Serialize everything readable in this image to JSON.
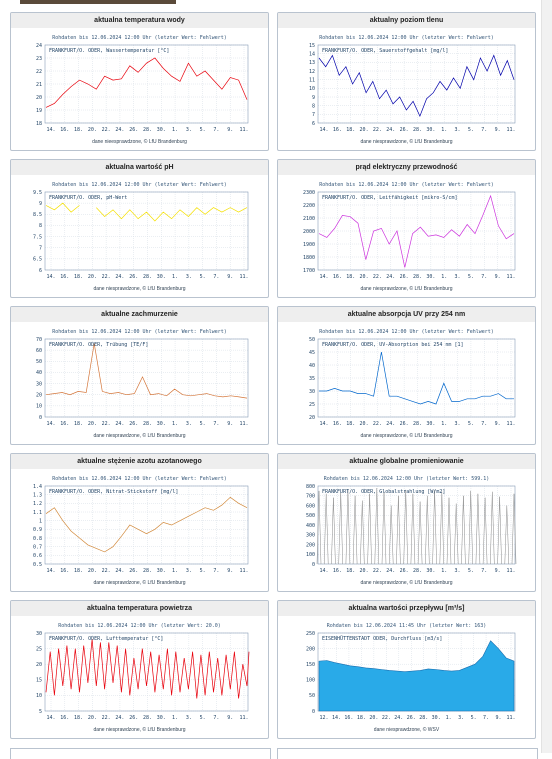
{
  "cards": [
    {
      "title": "aktualna temperatura wody",
      "subtitle": "Rohdaten bis 12.06.2024 12:00 Uhr (letzter Wert: Fehlwert)",
      "legend": "FRANKFURT/O. ODER, Wassertemperatur [°C]",
      "footer": "dane nieesprawdzone, © LfU Brandenburg",
      "color": "#e8000b"
    },
    {
      "title": "aktualny poziom tlenu",
      "subtitle": "Rohdaten bis 12.06.2024 12:00 Uhr (letzter Wert: Fehlwert)",
      "legend": "FRANKFURT/O. ODER, Sauerstoffgehalt [mg/l]",
      "footer": "dane niesprawdzone, © LfU Brandenburg",
      "color": "#0000aa"
    },
    {
      "title": "aktualna wartość pH",
      "subtitle": "Rohdaten bis 12.06.2024 12:00 Uhr (letzter Wert: Fehlwert)",
      "legend": "FRANKFURT/O. ODER, pH-Wert",
      "footer": "dane niesprawdzone, © LfU Brandenburg",
      "color": "#f5e000"
    },
    {
      "title": "prąd elektryczny przewodność",
      "subtitle": "Rohdaten bis 12.06.2024 12:00 Uhr (letzter Wert: Fehlwert)",
      "legend": "FRANKFURT/O. ODER, Leitfähigkeit [mikro-S/cm]",
      "footer": "dane niesprawdzone, © LfU Brandenburg",
      "color": "#cc33dd"
    },
    {
      "title": "aktualne zachmurzenie",
      "subtitle": "Rohdaten bis 12.06.2024 12:00 Uhr (letzter Wert: Fehlwert)",
      "legend": "FRANKFURT/O. ODER, Trübung [TE/F]",
      "footer": "dane niesprawdzone, © LfU Brandenburg",
      "color": "#d4763a"
    },
    {
      "title": "aktualne absorpcja UV przy 254 nm",
      "subtitle": "Rohdaten bis 12.06.2024 12:00 Uhr (letzter Wert: Fehlwert)",
      "legend": "FRANKFURT/O. ODER, UV-Absorption bei 254 nm [1]",
      "footer": "dane niesprawdzone, © LfU Brandenburg",
      "color": "#0066cc"
    },
    {
      "title": "aktualne stężenie azotu azotanowego",
      "subtitle": "Rohdaten bis 12.06.2024 12:00 Uhr (letzter Wert: Fehlwert)",
      "legend": "FRANKFURT/O. ODER, Nitrat-Stickstoff [mg/l]",
      "footer": "dane niesprawdzone, © LfU Brandenburg",
      "color": "#d28a3c"
    },
    {
      "title": "aktualne globalne promieniowanie",
      "subtitle": "Rohdaten bis 12.06.2024 12:00 Uhr (letzter Wert: 599.1)",
      "legend": "FRANKFURT/O. ODER, Globalstrahlung [W/m2]",
      "footer": "dane niesprawdzone, © LfU Brandenburg",
      "color": "#888888"
    },
    {
      "title": "aktualna temperatura powietrza",
      "subtitle": "Rohdaten bis 12.06.2024 12:00 Uhr (letzter Wert: 20.0)",
      "legend": "FRANKFURT/O. ODER, Lufttemperatur [°C]",
      "footer": "dane niesprawdzone, © LfU Brandenburg",
      "color": "#e8000b"
    },
    {
      "title": "aktualna wartości przepływu [m³/s]",
      "subtitle": "Rohdaten bis 12.06.2024 11:45 Uhr (letzter Wert: 163)",
      "legend": "EISENHÜTTENSTADT ODER, Durchfluss [m3/s]",
      "footer": "dane niesprawdzone, © WSV",
      "color": "#29aae8"
    }
  ],
  "chart_data": [
    {
      "type": "line",
      "x_ticks": [
        "14.",
        "16.",
        "18.",
        "20.",
        "22.",
        "24.",
        "26.",
        "28.",
        "30.",
        "1.",
        "3.",
        "5.",
        "7.",
        "9.",
        "11."
      ],
      "ylim": [
        18,
        24
      ],
      "y_ticks": [
        18,
        19,
        20,
        21,
        22,
        23,
        24
      ],
      "grid": true,
      "series": [
        {
          "values": [
            19.2,
            19.5,
            20.2,
            20.8,
            21.3,
            21.0,
            20.6,
            21.6,
            21.3,
            21.4,
            22.4,
            21.9,
            22.6,
            23.0,
            22.2,
            21.6,
            21.2,
            22.6,
            21.6,
            22.0,
            21.3,
            20.6,
            21.5,
            21.3,
            19.8
          ]
        }
      ]
    },
    {
      "type": "line",
      "x_ticks": [
        "14.",
        "16.",
        "18.",
        "20.",
        "22.",
        "24.",
        "26.",
        "28.",
        "30.",
        "1.",
        "3.",
        "5.",
        "7.",
        "9.",
        "11."
      ],
      "ylim": [
        6,
        15
      ],
      "y_ticks": [
        6,
        7,
        8,
        9,
        10,
        11,
        12,
        13,
        14,
        15
      ],
      "grid": true,
      "series": [
        {
          "values": [
            13.5,
            12.5,
            13.8,
            11.5,
            12.5,
            10.5,
            11.8,
            9.5,
            10.8,
            8.8,
            9.8,
            8.2,
            9.0,
            7.5,
            8.5,
            6.8,
            8.8,
            9.5,
            10.8,
            9.8,
            11.2,
            10.0,
            12.5,
            11.0,
            13.5,
            12.0,
            13.8,
            11.5,
            13.2,
            11.0
          ]
        }
      ]
    },
    {
      "type": "line",
      "x_ticks": [
        "14.",
        "16.",
        "18.",
        "20.",
        "22.",
        "24.",
        "26.",
        "28.",
        "30.",
        "1.",
        "3.",
        "5.",
        "7.",
        "9.",
        "11."
      ],
      "ylim": [
        6,
        9.5
      ],
      "y_ticks": [
        6,
        6.5,
        7,
        7.5,
        8,
        8.5,
        9,
        9.5
      ],
      "grid": true,
      "series": [
        {
          "values": [
            8.9,
            8.7,
            9.0,
            8.6,
            8.9,
            null,
            8.8,
            8.4,
            8.7,
            8.3,
            8.7,
            8.3,
            8.6,
            8.2,
            8.6,
            8.3,
            8.7,
            8.4,
            8.8,
            8.5,
            8.8,
            8.6,
            8.8,
            8.6,
            8.8
          ]
        }
      ]
    },
    {
      "type": "line",
      "x_ticks": [
        "14.",
        "16.",
        "18.",
        "20.",
        "22.",
        "24.",
        "26.",
        "28.",
        "30.",
        "1.",
        "3.",
        "5.",
        "7.",
        "9.",
        "11."
      ],
      "ylim": [
        1700,
        2300
      ],
      "y_ticks": [
        1700,
        1800,
        1900,
        2000,
        2100,
        2200,
        2300
      ],
      "grid": true,
      "series": [
        {
          "values": [
            1980,
            1950,
            2020,
            2120,
            2110,
            2060,
            1780,
            2000,
            2020,
            1900,
            2000,
            1720,
            1980,
            2030,
            1960,
            1970,
            1950,
            2010,
            1960,
            2050,
            1980,
            2120,
            2270,
            2040,
            1940,
            1980
          ]
        }
      ]
    },
    {
      "type": "line",
      "x_ticks": [
        "14.",
        "16.",
        "18.",
        "20.",
        "22.",
        "24.",
        "26.",
        "28.",
        "30.",
        "1.",
        "3.",
        "5.",
        "7.",
        "9.",
        "11."
      ],
      "ylim": [
        0,
        70
      ],
      "y_ticks": [
        0,
        10,
        20,
        30,
        40,
        50,
        60,
        70
      ],
      "grid": true,
      "series": [
        {
          "values": [
            20,
            21,
            22,
            20,
            23,
            22,
            66,
            23,
            21,
            22,
            20,
            21,
            36,
            20,
            21,
            19,
            25,
            20,
            19,
            20,
            21,
            19,
            18,
            19,
            18,
            17
          ]
        }
      ]
    },
    {
      "type": "line",
      "x_ticks": [
        "14.",
        "16.",
        "18.",
        "20.",
        "22.",
        "24.",
        "26.",
        "28.",
        "30.",
        "1.",
        "3.",
        "5.",
        "7.",
        "9.",
        "11."
      ],
      "ylim": [
        20,
        50
      ],
      "y_ticks": [
        20,
        25,
        30,
        35,
        40,
        45,
        50
      ],
      "grid": true,
      "series": [
        {
          "values": [
            30,
            30,
            31,
            30,
            30,
            29,
            29,
            28,
            45,
            28,
            28,
            27,
            26,
            25,
            26,
            25,
            33,
            26,
            26,
            27,
            27,
            28,
            28,
            29,
            27,
            27
          ]
        }
      ]
    },
    {
      "type": "line",
      "x_ticks": [
        "14.",
        "16.",
        "18.",
        "20.",
        "22.",
        "24.",
        "26.",
        "28.",
        "30.",
        "1.",
        "3.",
        "5.",
        "7.",
        "9.",
        "11."
      ],
      "ylim": [
        0.5,
        1.4
      ],
      "y_ticks": [
        0.5,
        0.6,
        0.7,
        0.8,
        0.9,
        1.0,
        1.1,
        1.2,
        1.3,
        1.4
      ],
      "grid": true,
      "series": [
        {
          "values": [
            1.08,
            1.15,
            1.0,
            0.88,
            0.8,
            0.72,
            0.68,
            0.64,
            0.7,
            0.82,
            0.95,
            0.9,
            0.85,
            0.9,
            0.98,
            0.95,
            1.0,
            1.05,
            1.1,
            1.15,
            1.12,
            1.18,
            1.27,
            1.2,
            1.15
          ]
        }
      ]
    },
    {
      "type": "line",
      "x_ticks": [
        "14.",
        "16.",
        "18.",
        "20.",
        "22.",
        "24.",
        "26.",
        "28.",
        "30.",
        "1.",
        "3.",
        "5.",
        "7.",
        "9.",
        "11."
      ],
      "ylim": [
        0,
        800
      ],
      "y_ticks": [
        0,
        100,
        200,
        300,
        400,
        500,
        600,
        700,
        800
      ],
      "grid": true,
      "series": [
        {
          "values": [
            750,
            720,
            680,
            740,
            760,
            700,
            650,
            720,
            780,
            740,
            600,
            700,
            760,
            720,
            640,
            700,
            760,
            740,
            680,
            620,
            700,
            750,
            720,
            680,
            740,
            690,
            600,
            720
          ]
        }
      ]
    },
    {
      "type": "line",
      "x_ticks": [
        "14.",
        "16.",
        "18.",
        "20.",
        "22.",
        "24.",
        "26.",
        "28.",
        "30.",
        "1.",
        "3.",
        "5.",
        "7.",
        "9.",
        "11."
      ],
      "ylim": [
        5,
        30
      ],
      "y_ticks": [
        5,
        10,
        15,
        20,
        25,
        30
      ],
      "grid": true,
      "series": [
        {
          "values": [
            [
              11,
              24
            ],
            [
              10,
              25
            ],
            [
              13,
              26
            ],
            [
              12,
              25
            ],
            [
              11,
              26
            ],
            [
              14,
              28
            ],
            [
              13,
              27
            ],
            [
              12,
              27
            ],
            [
              14,
              26
            ],
            [
              11,
              25
            ],
            [
              10,
              22
            ],
            [
              12,
              25
            ],
            [
              13,
              24
            ],
            [
              11,
              23
            ],
            [
              12,
              25
            ],
            [
              10,
              24
            ],
            [
              11,
              22
            ],
            [
              12,
              24
            ],
            [
              9,
              23
            ],
            [
              10,
              24
            ],
            [
              11,
              22
            ],
            [
              10,
              23
            ],
            [
              12,
              24
            ],
            [
              9,
              20
            ],
            [
              13,
              24
            ]
          ]
        }
      ]
    },
    {
      "type": "area",
      "x_ticks": [
        "12.",
        "14.",
        "16.",
        "18.",
        "20.",
        "22.",
        "24.",
        "26.",
        "28.",
        "30.",
        "1.",
        "3.",
        "5.",
        "7.",
        "9.",
        "11."
      ],
      "ylim": [
        0,
        250
      ],
      "y_ticks": [
        0,
        50,
        100,
        150,
        200,
        250
      ],
      "grid": true,
      "series": [
        {
          "values": [
            160,
            162,
            155,
            150,
            145,
            142,
            138,
            136,
            133,
            130,
            128,
            126,
            128,
            130,
            135,
            133,
            130,
            128,
            130,
            140,
            150,
            175,
            225,
            200,
            170,
            160
          ]
        }
      ]
    }
  ]
}
